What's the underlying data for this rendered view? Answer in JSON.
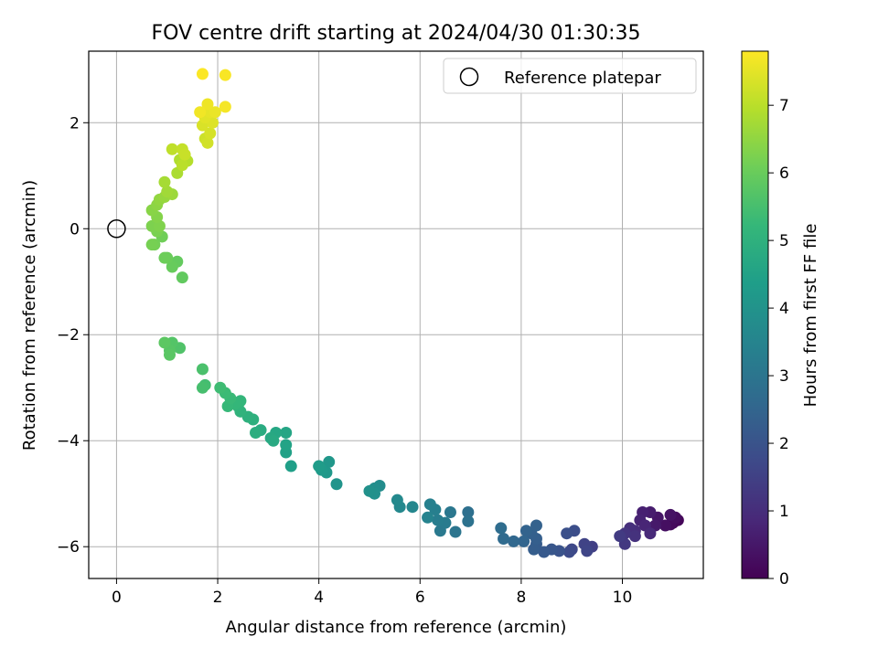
{
  "chart_data": {
    "type": "scatter",
    "title": "FOV centre drift starting at 2024/04/30 01:30:35",
    "xlabel": "Angular distance from reference (arcmin)",
    "ylabel": "Rotation from reference (arcmin)",
    "xlim": [
      -0.55,
      11.6
    ],
    "ylim": [
      -6.6,
      3.35
    ],
    "x_ticks": [
      0,
      2,
      4,
      6,
      8,
      10
    ],
    "y_ticks": [
      -6,
      -4,
      -2,
      0,
      2
    ],
    "x_tick_labels": [
      "0",
      "2",
      "4",
      "6",
      "8",
      "10"
    ],
    "y_tick_labels": [
      "−6",
      "−4",
      "−2",
      "0",
      "2"
    ],
    "grid": true,
    "legend": {
      "placement": "top-right",
      "entries": [
        "Reference platepar"
      ]
    },
    "reference_point": {
      "x": 0,
      "y": 0,
      "label": "Reference platepar"
    },
    "colorbar": {
      "label": "Hours from first FF file",
      "colormap": "viridis",
      "range": [
        0,
        7.8
      ],
      "ticks": [
        0,
        1,
        2,
        3,
        4,
        5,
        6,
        7
      ],
      "tick_labels": [
        "0",
        "1",
        "2",
        "3",
        "4",
        "5",
        "6",
        "7"
      ]
    },
    "series_columns": [
      "x",
      "y",
      "hours"
    ],
    "points": [
      [
        11.0,
        -5.55,
        0.05
      ],
      [
        11.1,
        -5.5,
        0.12
      ],
      [
        10.95,
        -5.58,
        0.18
      ],
      [
        11.05,
        -5.45,
        0.25
      ],
      [
        10.85,
        -5.6,
        0.3
      ],
      [
        10.95,
        -5.4,
        0.38
      ],
      [
        10.7,
        -5.45,
        0.45
      ],
      [
        10.65,
        -5.6,
        0.52
      ],
      [
        10.55,
        -5.35,
        0.6
      ],
      [
        10.4,
        -5.35,
        0.68
      ],
      [
        10.35,
        -5.5,
        0.75
      ],
      [
        10.45,
        -5.6,
        0.82
      ],
      [
        10.55,
        -5.75,
        0.9
      ],
      [
        10.25,
        -5.7,
        0.98
      ],
      [
        10.15,
        -5.65,
        1.05
      ],
      [
        10.25,
        -5.8,
        1.12
      ],
      [
        10.05,
        -5.75,
        1.2
      ],
      [
        10.05,
        -5.95,
        1.28
      ],
      [
        9.95,
        -5.8,
        1.35
      ],
      [
        9.4,
        -6.0,
        1.45
      ],
      [
        9.25,
        -5.95,
        1.55
      ],
      [
        9.3,
        -6.08,
        1.62
      ],
      [
        9.0,
        -6.05,
        1.7
      ],
      [
        8.95,
        -6.1,
        1.78
      ],
      [
        9.05,
        -5.7,
        1.85
      ],
      [
        8.9,
        -5.75,
        1.92
      ],
      [
        8.75,
        -6.08,
        2.0
      ],
      [
        8.6,
        -6.05,
        2.08
      ],
      [
        8.45,
        -6.1,
        2.15
      ],
      [
        8.3,
        -5.95,
        2.22
      ],
      [
        8.25,
        -6.05,
        2.28
      ],
      [
        8.3,
        -5.85,
        2.32
      ],
      [
        8.2,
        -5.75,
        2.36
      ],
      [
        8.3,
        -5.6,
        2.4
      ],
      [
        8.1,
        -5.7,
        2.44
      ],
      [
        8.05,
        -5.9,
        2.5
      ],
      [
        7.85,
        -5.9,
        2.58
      ],
      [
        7.65,
        -5.85,
        2.66
      ],
      [
        7.6,
        -5.65,
        2.74
      ],
      [
        6.95,
        -5.35,
        2.84
      ],
      [
        6.95,
        -5.52,
        2.92
      ],
      [
        6.7,
        -5.72,
        3.0
      ],
      [
        6.6,
        -5.35,
        3.08
      ],
      [
        6.4,
        -5.7,
        3.14
      ],
      [
        6.5,
        -5.55,
        3.2
      ],
      [
        6.35,
        -5.5,
        3.26
      ],
      [
        6.3,
        -5.3,
        3.32
      ],
      [
        6.2,
        -5.2,
        3.38
      ],
      [
        6.15,
        -5.45,
        3.46
      ],
      [
        5.85,
        -5.25,
        3.56
      ],
      [
        5.6,
        -5.25,
        3.62
      ],
      [
        5.55,
        -5.12,
        3.68
      ],
      [
        5.2,
        -4.85,
        3.78
      ],
      [
        5.1,
        -4.9,
        3.84
      ],
      [
        5.1,
        -5.0,
        3.9
      ],
      [
        5.0,
        -4.95,
        3.95
      ],
      [
        4.35,
        -4.82,
        4.05
      ],
      [
        4.2,
        -4.4,
        4.12
      ],
      [
        4.15,
        -4.6,
        4.18
      ],
      [
        4.05,
        -4.55,
        4.24
      ],
      [
        4.0,
        -4.48,
        4.3
      ],
      [
        3.45,
        -4.48,
        4.4
      ],
      [
        3.35,
        -4.22,
        4.47
      ],
      [
        3.35,
        -4.08,
        4.54
      ],
      [
        3.35,
        -3.85,
        4.6
      ],
      [
        3.15,
        -3.85,
        4.66
      ],
      [
        3.05,
        -3.95,
        4.72
      ],
      [
        3.1,
        -4.0,
        4.76
      ],
      [
        2.85,
        -3.8,
        4.82
      ],
      [
        2.75,
        -3.85,
        4.88
      ],
      [
        2.7,
        -3.6,
        4.94
      ],
      [
        2.6,
        -3.55,
        5.0
      ],
      [
        2.45,
        -3.45,
        5.06
      ],
      [
        2.4,
        -3.35,
        5.1
      ],
      [
        2.45,
        -3.25,
        5.15
      ],
      [
        2.35,
        -3.3,
        5.2
      ],
      [
        2.2,
        -3.35,
        5.24
      ],
      [
        2.25,
        -3.2,
        5.28
      ],
      [
        2.15,
        -3.1,
        5.32
      ],
      [
        2.05,
        -3.0,
        5.38
      ],
      [
        1.75,
        -2.95,
        5.45
      ],
      [
        1.7,
        -3.0,
        5.5
      ],
      [
        1.7,
        -2.65,
        5.56
      ],
      [
        1.25,
        -2.25,
        5.65
      ],
      [
        1.1,
        -2.15,
        5.7
      ],
      [
        1.05,
        -2.3,
        5.74
      ],
      [
        1.05,
        -2.38,
        5.78
      ],
      [
        0.95,
        -2.15,
        5.82
      ],
      [
        1.3,
        -0.92,
        5.9
      ],
      [
        1.2,
        -0.62,
        5.94
      ],
      [
        1.1,
        -0.72,
        5.98
      ],
      [
        1.0,
        -0.55,
        6.02
      ],
      [
        0.95,
        -0.55,
        6.06
      ],
      [
        0.9,
        -0.15,
        6.1
      ],
      [
        0.75,
        -0.3,
        6.14
      ],
      [
        0.7,
        -0.3,
        6.18
      ],
      [
        0.8,
        -0.05,
        6.22
      ],
      [
        0.7,
        0.05,
        6.26
      ],
      [
        0.85,
        0.05,
        6.3
      ],
      [
        0.8,
        0.22,
        6.35
      ],
      [
        0.7,
        0.35,
        6.4
      ],
      [
        0.8,
        0.45,
        6.46
      ],
      [
        0.85,
        0.55,
        6.52
      ],
      [
        0.95,
        0.6,
        6.58
      ],
      [
        1.1,
        0.65,
        6.64
      ],
      [
        1.0,
        0.7,
        6.7
      ],
      [
        0.95,
        0.88,
        6.76
      ],
      [
        1.2,
        1.05,
        6.82
      ],
      [
        1.25,
        1.3,
        6.88
      ],
      [
        1.4,
        1.28,
        6.94
      ],
      [
        1.3,
        1.2,
        7.0
      ],
      [
        1.1,
        1.5,
        7.06
      ],
      [
        1.3,
        1.5,
        7.12
      ],
      [
        1.35,
        1.4,
        7.17
      ],
      [
        1.75,
        1.7,
        7.22
      ],
      [
        1.8,
        1.62,
        7.27
      ],
      [
        1.85,
        1.8,
        7.32
      ],
      [
        1.7,
        1.95,
        7.37
      ],
      [
        1.9,
        2.0,
        7.42
      ],
      [
        1.75,
        2.1,
        7.47
      ],
      [
        1.85,
        2.2,
        7.52
      ],
      [
        1.95,
        2.2,
        7.57
      ],
      [
        1.8,
        2.35,
        7.62
      ],
      [
        1.65,
        2.2,
        7.66
      ],
      [
        2.15,
        2.3,
        7.7
      ],
      [
        2.15,
        2.9,
        7.74
      ],
      [
        1.7,
        2.92,
        7.78
      ]
    ]
  }
}
